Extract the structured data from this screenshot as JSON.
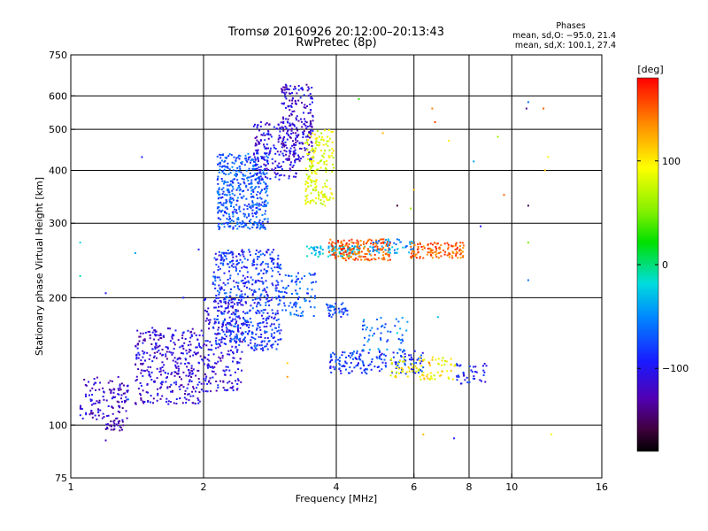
{
  "chart_data": {
    "type": "scatter",
    "title": "Tromsø 20160926 20:12:00–20:13:43",
    "subtitle": "RwPretec (8p)",
    "xlabel": "Frequency [MHz]",
    "ylabel": "Stationary phase Virtual Height [km]",
    "x_scale": "log",
    "y_scale": "log",
    "xlim": [
      1,
      16
    ],
    "ylim": [
      75,
      750
    ],
    "x_ticks": [
      1,
      2,
      4,
      6,
      8,
      10,
      16
    ],
    "x_tick_labels": [
      "1",
      "2",
      "4",
      "6",
      "8",
      "10",
      "16"
    ],
    "y_ticks": [
      75,
      100,
      200,
      300,
      400,
      500,
      600,
      750
    ],
    "y_tick_labels": [
      "75",
      "100",
      "200",
      "300",
      "400",
      "500",
      "600",
      "750"
    ],
    "grid": true,
    "phases_info": {
      "header": "Phases",
      "line_o": "mean, sd,O: −95.0, 21.4",
      "line_x": "mean, sd,X: 100.1, 27.4"
    },
    "colorbar": {
      "label": "[deg]",
      "range": [
        -180,
        180
      ],
      "ticks": [
        100,
        0,
        -100
      ],
      "tick_labels": [
        "100",
        "0",
        "−100"
      ]
    },
    "clusters": [
      {
        "x": [
          1.05,
          1.35
        ],
        "y": [
          103,
          130
        ],
        "phase": -118,
        "count": 120
      },
      {
        "x": [
          1.2,
          1.32
        ],
        "y": [
          97,
          103
        ],
        "phase": -125,
        "count": 30
      },
      {
        "x": [
          1.4,
          2.0
        ],
        "y": [
          112,
          170
        ],
        "phase": -112,
        "count": 350
      },
      {
        "x": [
          2.0,
          2.45
        ],
        "y": [
          120,
          200
        ],
        "phase": -108,
        "count": 220
      },
      {
        "x": [
          2.1,
          3.0
        ],
        "y": [
          150,
          260
        ],
        "phase": -85,
        "count": 550
      },
      {
        "x": [
          2.15,
          2.8
        ],
        "y": [
          290,
          440
        ],
        "phase": -72,
        "count": 450
      },
      {
        "x": [
          2.6,
          3.25
        ],
        "y": [
          380,
          520
        ],
        "phase": -105,
        "count": 180
      },
      {
        "x": [
          3.0,
          3.55
        ],
        "y": [
          420,
          640
        ],
        "phase": -115,
        "count": 220
      },
      {
        "x": [
          3.4,
          3.95
        ],
        "y": [
          330,
          500
        ],
        "phase": 85,
        "count": 180
      },
      {
        "x": [
          3.0,
          3.6
        ],
        "y": [
          180,
          230
        ],
        "phase": -70,
        "count": 80
      },
      {
        "x": [
          3.8,
          4.25
        ],
        "y": [
          180,
          195
        ],
        "phase": -75,
        "count": 40
      },
      {
        "x": [
          3.4,
          4.8
        ],
        "y": [
          250,
          265
        ],
        "phase": -30,
        "count": 90
      },
      {
        "x": [
          3.85,
          5.3
        ],
        "y": [
          245,
          275
        ],
        "phase": 150,
        "count": 180
      },
      {
        "x": [
          5.9,
          7.8
        ],
        "y": [
          248,
          270
        ],
        "phase": 150,
        "count": 120
      },
      {
        "x": [
          4.8,
          6.0
        ],
        "y": [
          255,
          275
        ],
        "phase": -45,
        "count": 50
      },
      {
        "x": [
          3.85,
          6.3
        ],
        "y": [
          132,
          150
        ],
        "phase": -85,
        "count": 170
      },
      {
        "x": [
          5.3,
          7.5
        ],
        "y": [
          128,
          145
        ],
        "phase": 95,
        "count": 90
      },
      {
        "x": [
          7.5,
          8.8
        ],
        "y": [
          125,
          140
        ],
        "phase": -95,
        "count": 40
      },
      {
        "x": [
          4.5,
          5.8
        ],
        "y": [
          150,
          180
        ],
        "phase": -60,
        "count": 50
      }
    ],
    "isolated_points": [
      {
        "x": 6.6,
        "y": 560,
        "phase": 140
      },
      {
        "x": 6.7,
        "y": 520,
        "phase": 160
      },
      {
        "x": 7.2,
        "y": 470,
        "phase": 100
      },
      {
        "x": 8.2,
        "y": 420,
        "phase": -40
      },
      {
        "x": 9.3,
        "y": 480,
        "phase": 60
      },
      {
        "x": 10.9,
        "y": 580,
        "phase": -60
      },
      {
        "x": 10.8,
        "y": 560,
        "phase": -140
      },
      {
        "x": 11.8,
        "y": 560,
        "phase": 150
      },
      {
        "x": 12.1,
        "y": 430,
        "phase": 90
      },
      {
        "x": 11.9,
        "y": 400,
        "phase": 120
      },
      {
        "x": 10.9,
        "y": 330,
        "phase": -150
      },
      {
        "x": 10.9,
        "y": 270,
        "phase": 50
      },
      {
        "x": 10.9,
        "y": 220,
        "phase": -60
      },
      {
        "x": 12.3,
        "y": 95,
        "phase": 90
      },
      {
        "x": 6.3,
        "y": 95,
        "phase": 120
      },
      {
        "x": 7.4,
        "y": 93,
        "phase": -95
      },
      {
        "x": 5.1,
        "y": 490,
        "phase": 120
      },
      {
        "x": 6.0,
        "y": 360,
        "phase": 120
      },
      {
        "x": 5.9,
        "y": 325,
        "phase": 60
      },
      {
        "x": 9.6,
        "y": 350,
        "phase": 150
      },
      {
        "x": 5.5,
        "y": 330,
        "phase": -160
      },
      {
        "x": 8.5,
        "y": 295,
        "phase": -100
      },
      {
        "x": 1.05,
        "y": 270,
        "phase": -20
      },
      {
        "x": 1.05,
        "y": 225,
        "phase": -10
      },
      {
        "x": 1.2,
        "y": 205,
        "phase": -100
      },
      {
        "x": 1.4,
        "y": 255,
        "phase": -40
      },
      {
        "x": 1.45,
        "y": 430,
        "phase": -90
      },
      {
        "x": 1.35,
        "y": 115,
        "phase": -60
      },
      {
        "x": 1.2,
        "y": 92,
        "phase": -120
      },
      {
        "x": 1.95,
        "y": 260,
        "phase": -100
      },
      {
        "x": 1.8,
        "y": 200,
        "phase": -90
      },
      {
        "x": 2.7,
        "y": 520,
        "phase": -110
      },
      {
        "x": 3.1,
        "y": 140,
        "phase": 110
      },
      {
        "x": 3.1,
        "y": 130,
        "phase": 130
      },
      {
        "x": 6.8,
        "y": 180,
        "phase": -30
      },
      {
        "x": 6.5,
        "y": 140,
        "phase": 150
      },
      {
        "x": 5.5,
        "y": 165,
        "phase": -20
      },
      {
        "x": 4.5,
        "y": 590,
        "phase": 30
      }
    ]
  }
}
